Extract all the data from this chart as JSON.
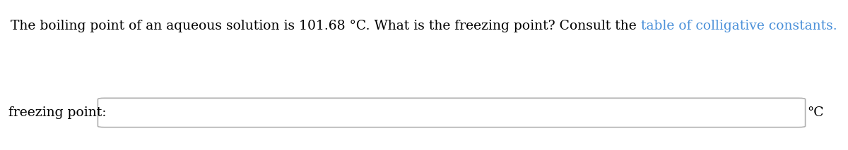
{
  "text_main": "The boiling point of an aqueous solution is 101.68 °C. What is the freezing point? Consult the ",
  "text_link": "table of colligative constants.",
  "text_label": "freezing point:",
  "text_unit": "°C",
  "main_color": "#000000",
  "link_color": "#4a90d9",
  "background_color": "#ffffff",
  "box_edge_color": "#b0b0b0",
  "box_fill_color": "#ffffff",
  "font_size": 13.5,
  "label_font_size": 13.5,
  "unit_font_size": 13.5,
  "fig_width": 12.0,
  "fig_height": 2.13,
  "dpi": 100
}
